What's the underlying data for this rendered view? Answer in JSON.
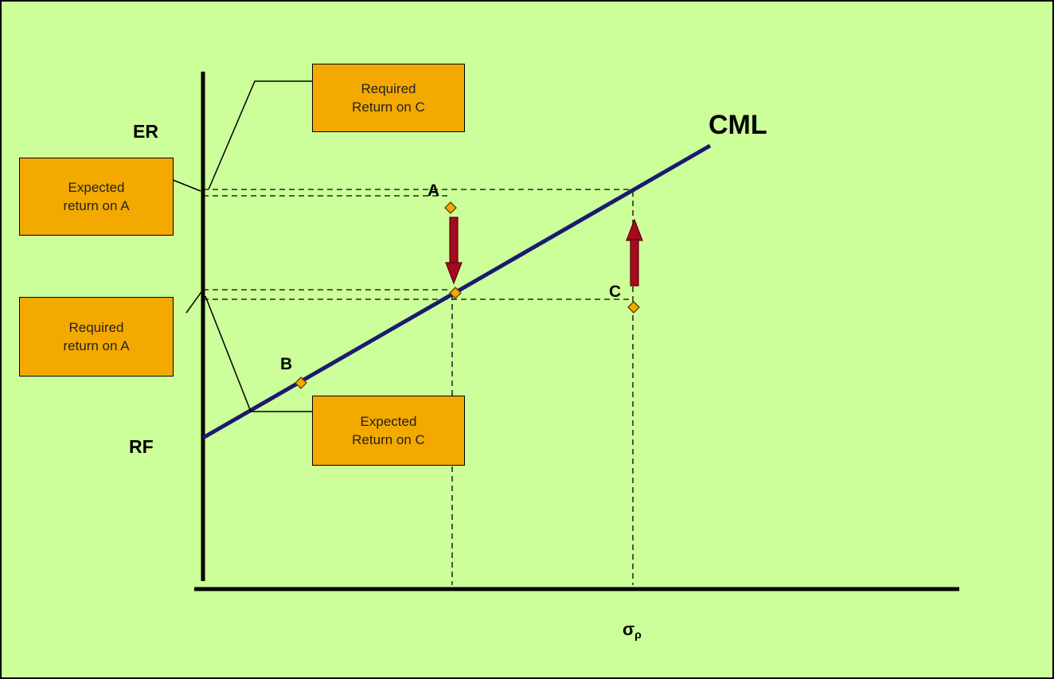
{
  "colors": {
    "background": "#ccff99",
    "callout_fill": "#f4a900",
    "cml_line": "#1a1a6e",
    "arrow": "#a50a1e",
    "point_marker": "#f4a900"
  },
  "axes": {
    "y_label": "ER",
    "rf_label": "RF",
    "x_label": "σ",
    "x_label_subscript": "ρ"
  },
  "line": {
    "label": "CML"
  },
  "points": {
    "A": "A",
    "B": "B",
    "C": "C"
  },
  "callouts": {
    "required_return_c": {
      "line1": "Required",
      "line2": "Return on C"
    },
    "expected_return_a": {
      "line1": "Expected",
      "line2": "return on A"
    },
    "required_return_a": {
      "line1": "Required",
      "line2": "return on A"
    },
    "expected_return_c": {
      "line1": "Expected",
      "line2": "Return on C"
    }
  }
}
